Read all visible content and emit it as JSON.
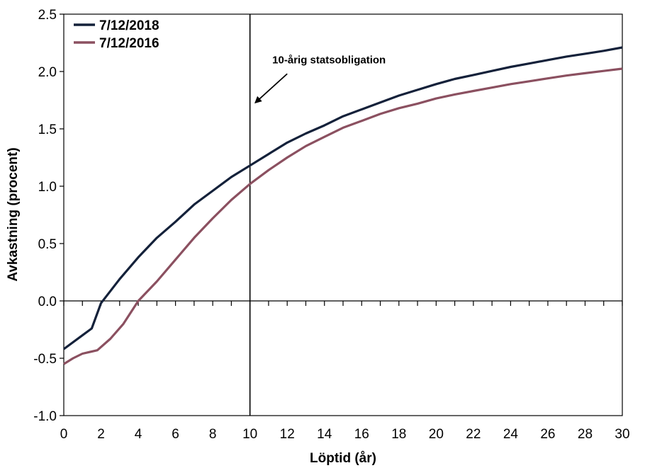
{
  "chart_data": {
    "type": "line",
    "xlabel": "Löptid (år)",
    "ylabel": "Avkastning (procent)",
    "xlim": [
      0,
      30
    ],
    "ylim": [
      -1.0,
      2.5
    ],
    "x_ticks": [
      0,
      2,
      4,
      6,
      8,
      10,
      12,
      14,
      16,
      18,
      20,
      22,
      24,
      26,
      28,
      30
    ],
    "x_tick_labels": [
      "0",
      "2",
      "4",
      "6",
      "8",
      "10",
      "12",
      "14",
      "16",
      "18",
      "20",
      "22",
      "24",
      "26",
      "28",
      "30"
    ],
    "x_minor_step": 1,
    "y_ticks": [
      -1.0,
      -0.5,
      0.0,
      0.5,
      1.0,
      1.5,
      2.0,
      2.5
    ],
    "y_tick_labels": [
      "-1.0",
      "-0.5",
      "0.0",
      "0.5",
      "1.0",
      "1.5",
      "2.0",
      "2.5"
    ],
    "grid": false,
    "legend_position": "top-left",
    "series": [
      {
        "name": "7/12/2018",
        "color": "#14213a",
        "x": [
          0,
          1,
          1.5,
          2,
          3,
          4,
          5,
          6,
          7,
          8,
          9,
          10,
          11,
          12,
          13,
          14,
          15,
          16,
          17,
          18,
          19,
          20,
          21,
          22,
          23,
          24,
          25,
          26,
          27,
          28,
          29,
          30
        ],
        "y": [
          -0.42,
          -0.3,
          -0.24,
          -0.02,
          0.19,
          0.38,
          0.55,
          0.69,
          0.84,
          0.96,
          1.08,
          1.18,
          1.28,
          1.38,
          1.46,
          1.53,
          1.61,
          1.67,
          1.73,
          1.79,
          1.84,
          1.89,
          1.935,
          1.97,
          2.005,
          2.04,
          2.07,
          2.1,
          2.13,
          2.155,
          2.18,
          2.21
        ]
      },
      {
        "name": "7/12/2016",
        "color": "#8b5060",
        "x": [
          0,
          0.5,
          1,
          1.8,
          2.5,
          3.2,
          4,
          5,
          6,
          7,
          8,
          9,
          10,
          11,
          12,
          13,
          14,
          15,
          16,
          17,
          18,
          19,
          20,
          21,
          22,
          23,
          24,
          25,
          26,
          27,
          28,
          29,
          30
        ],
        "y": [
          -0.55,
          -0.5,
          -0.46,
          -0.43,
          -0.33,
          -0.2,
          0.0,
          0.17,
          0.36,
          0.55,
          0.72,
          0.88,
          1.02,
          1.14,
          1.25,
          1.35,
          1.43,
          1.51,
          1.57,
          1.63,
          1.68,
          1.72,
          1.765,
          1.8,
          1.83,
          1.86,
          1.89,
          1.915,
          1.94,
          1.965,
          1.985,
          2.005,
          2.025
        ]
      }
    ],
    "vline": {
      "x": 10
    },
    "annotation": {
      "text": "10-årig statsobligation",
      "text_x": 11.2,
      "text_y": 2.07,
      "arrow_from": [
        12.0,
        1.98
      ],
      "arrow_to": [
        10.3,
        1.73
      ]
    }
  }
}
